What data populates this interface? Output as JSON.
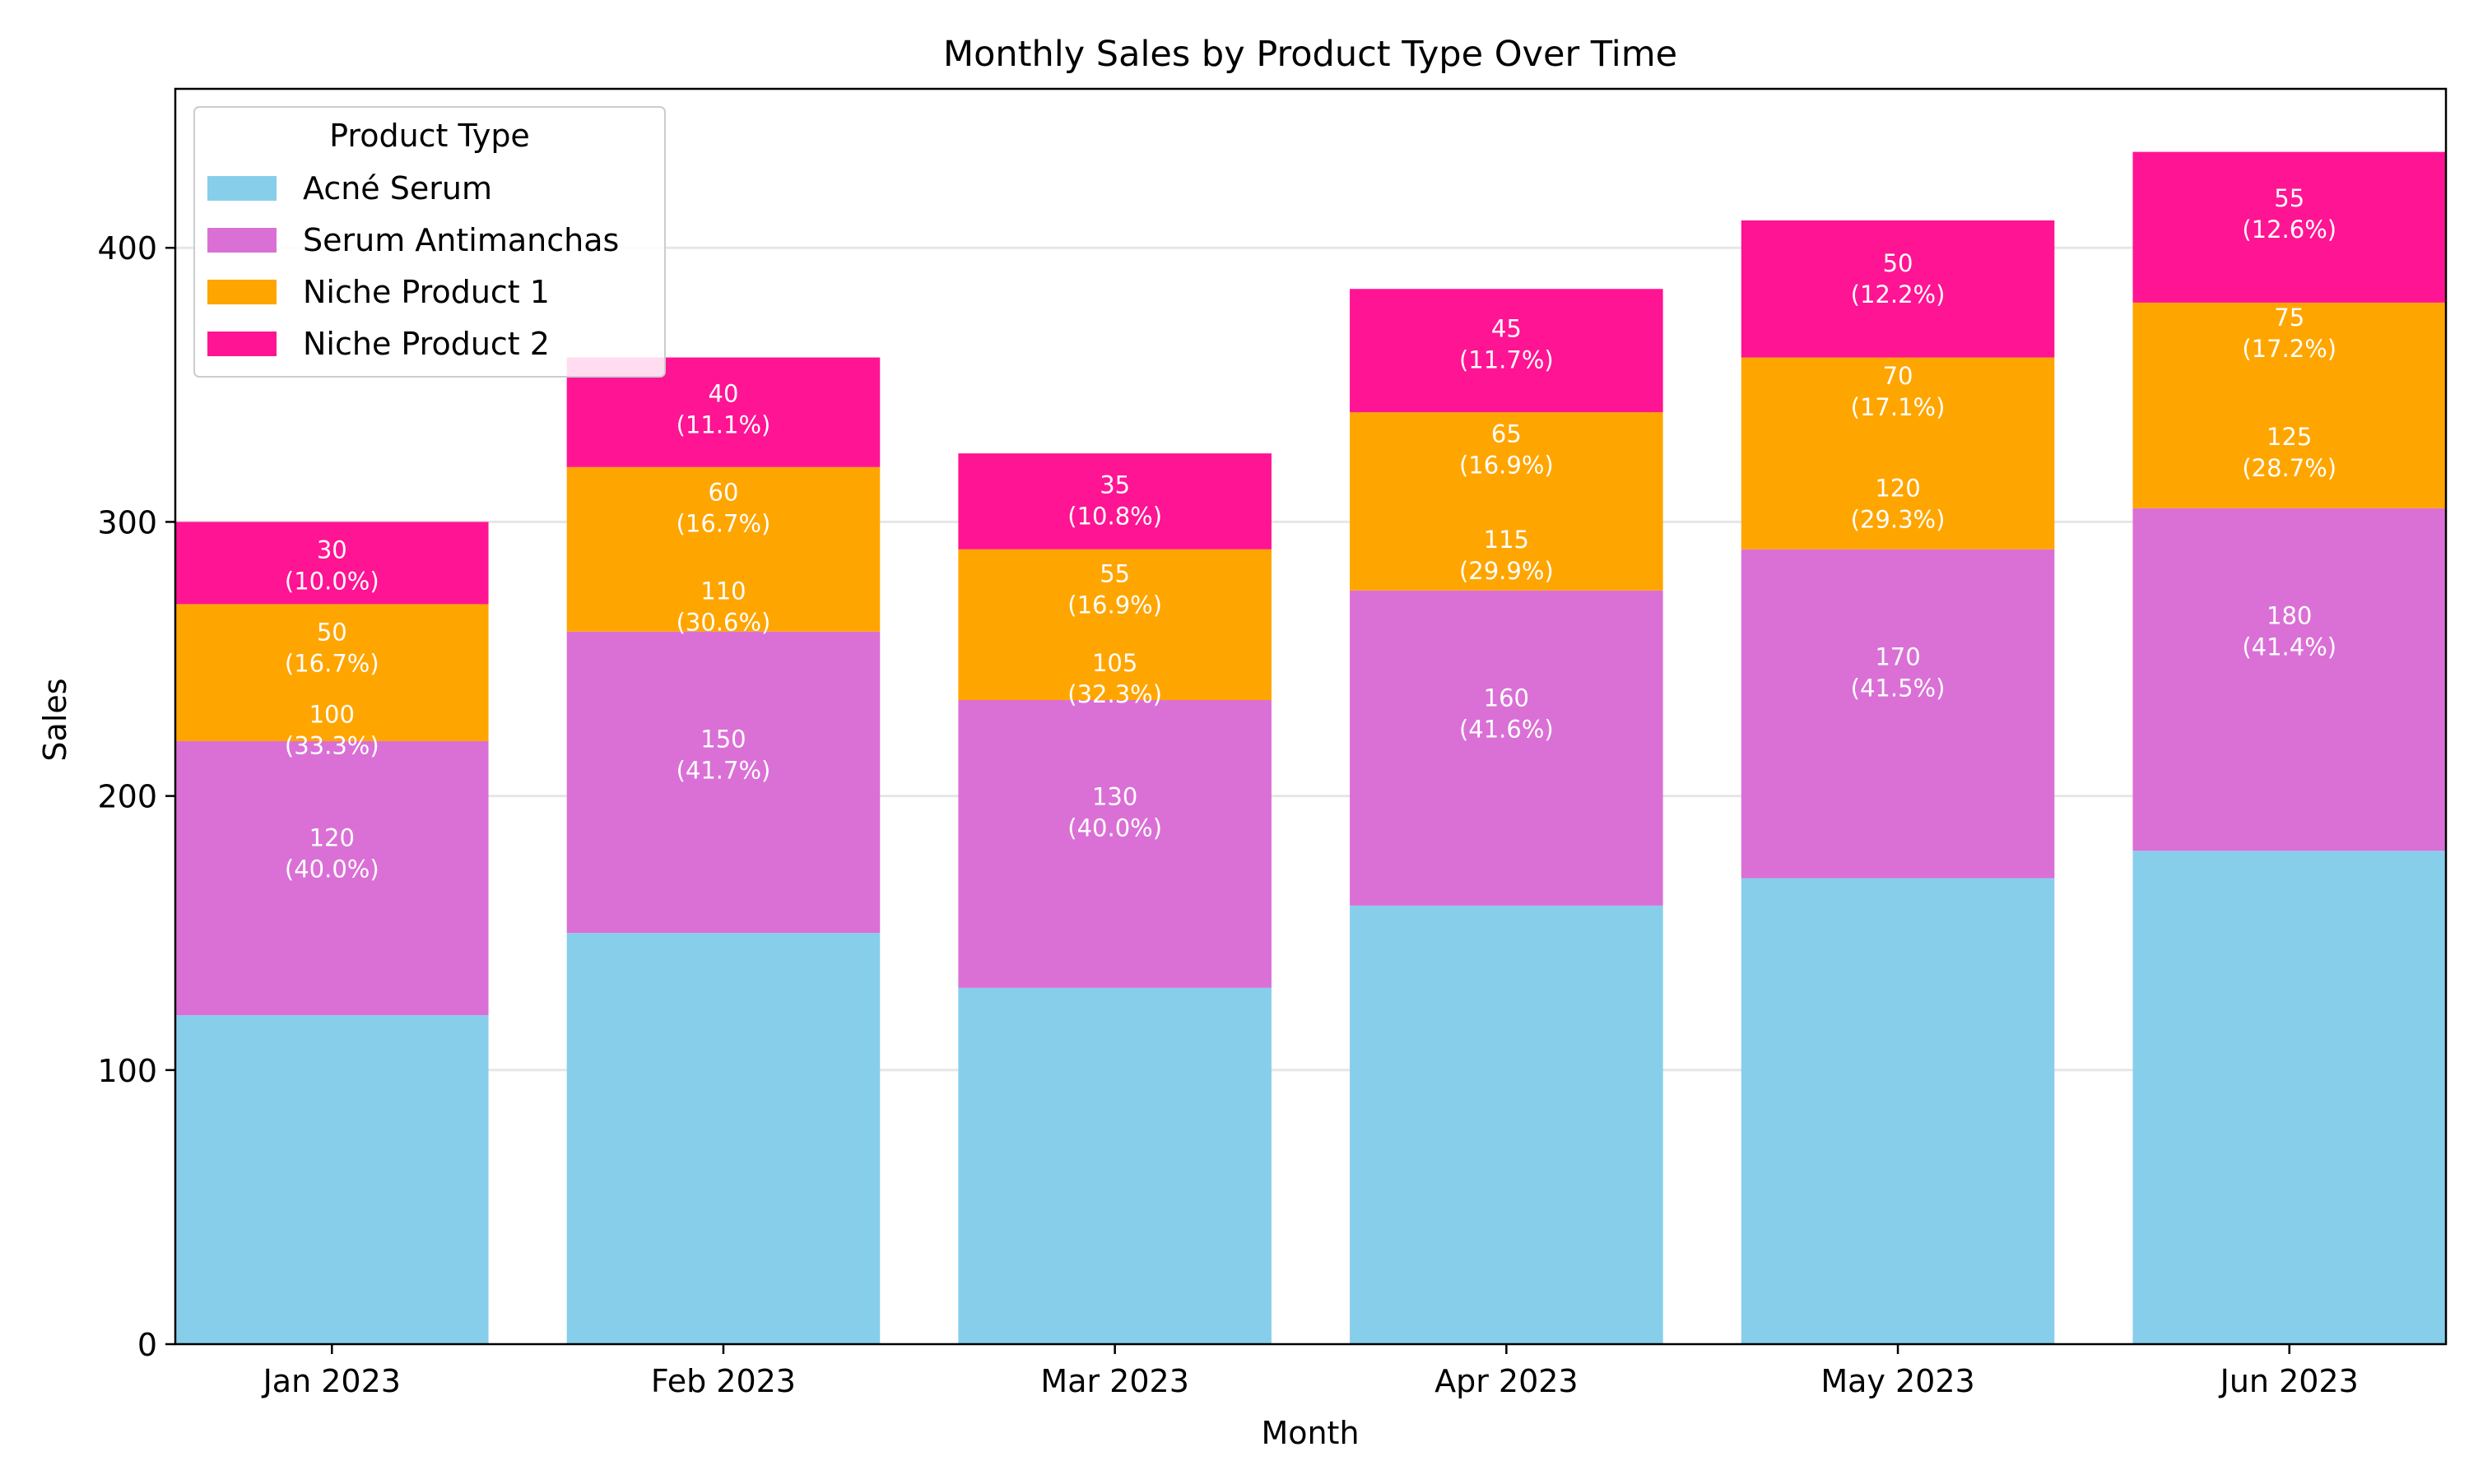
{
  "chart_data": {
    "type": "bar",
    "stacked": true,
    "title": "Monthly Sales by Product Type Over Time",
    "xlabel": "Month",
    "ylabel": "Sales",
    "categories": [
      "Jan 2023",
      "Feb 2023",
      "Mar 2023",
      "Apr 2023",
      "May 2023",
      "Jun 2023"
    ],
    "ylim": [
      0,
      458
    ],
    "yticks": [
      "0",
      "100",
      "200",
      "300",
      "400"
    ],
    "grid": "horizontal",
    "legend": {
      "title": "Product Type",
      "placement": "top-left"
    },
    "series": [
      {
        "name": "Acné Serum",
        "color": "#87ceeb",
        "values": [
          120,
          150,
          130,
          160,
          170,
          180
        ]
      },
      {
        "name": "Serum Antimanchas",
        "color": "#da70d6",
        "values": [
          100,
          110,
          105,
          115,
          120,
          125
        ]
      },
      {
        "name": "Niche Product 1",
        "color": "#ffa500",
        "values": [
          50,
          60,
          55,
          65,
          70,
          75
        ]
      },
      {
        "name": "Niche Product 2",
        "color": "#ff1493",
        "values": [
          30,
          40,
          35,
          45,
          50,
          55
        ]
      }
    ],
    "annotations": [
      {
        "value": "30",
        "pct": "(10.0%)",
        "series": 3,
        "category": 0
      },
      {
        "value": "50",
        "pct": "(16.7%)",
        "series": 2,
        "category": 0
      },
      {
        "value": "100",
        "pct": "(33.3%)",
        "series": 1,
        "category": 0
      },
      {
        "value": "120",
        "pct": "(40.0%)",
        "series": 0,
        "category": 0
      },
      {
        "value": "40",
        "pct": "(11.1%)",
        "series": 3,
        "category": 1
      },
      {
        "value": "60",
        "pct": "(16.7%)",
        "series": 2,
        "category": 1
      },
      {
        "value": "110",
        "pct": "(30.6%)",
        "series": 1,
        "category": 1
      },
      {
        "value": "150",
        "pct": "(41.7%)",
        "series": 0,
        "category": 1
      },
      {
        "value": "35",
        "pct": "(10.8%)",
        "series": 3,
        "category": 2
      },
      {
        "value": "55",
        "pct": "(16.9%)",
        "series": 2,
        "category": 2
      },
      {
        "value": "105",
        "pct": "(32.3%)",
        "series": 1,
        "category": 2
      },
      {
        "value": "130",
        "pct": "(40.0%)",
        "series": 0,
        "category": 2
      },
      {
        "value": "45",
        "pct": "(11.7%)",
        "series": 3,
        "category": 3
      },
      {
        "value": "65",
        "pct": "(16.9%)",
        "series": 2,
        "category": 3
      },
      {
        "value": "115",
        "pct": "(29.9%)",
        "series": 1,
        "category": 3
      },
      {
        "value": "160",
        "pct": "(41.6%)",
        "series": 0,
        "category": 3
      },
      {
        "value": "50",
        "pct": "(12.2%)",
        "series": 3,
        "category": 4
      },
      {
        "value": "70",
        "pct": "(17.1%)",
        "series": 2,
        "category": 4
      },
      {
        "value": "120",
        "pct": "(29.3%)",
        "series": 1,
        "category": 4
      },
      {
        "value": "170",
        "pct": "(41.5%)",
        "series": 0,
        "category": 4
      },
      {
        "value": "55",
        "pct": "(12.6%)",
        "series": 3,
        "category": 5
      },
      {
        "value": "75",
        "pct": "(17.2%)",
        "series": 2,
        "category": 5
      },
      {
        "value": "125",
        "pct": "(28.7%)",
        "series": 1,
        "category": 5
      },
      {
        "value": "180",
        "pct": "(41.4%)",
        "series": 0,
        "category": 5
      }
    ]
  }
}
